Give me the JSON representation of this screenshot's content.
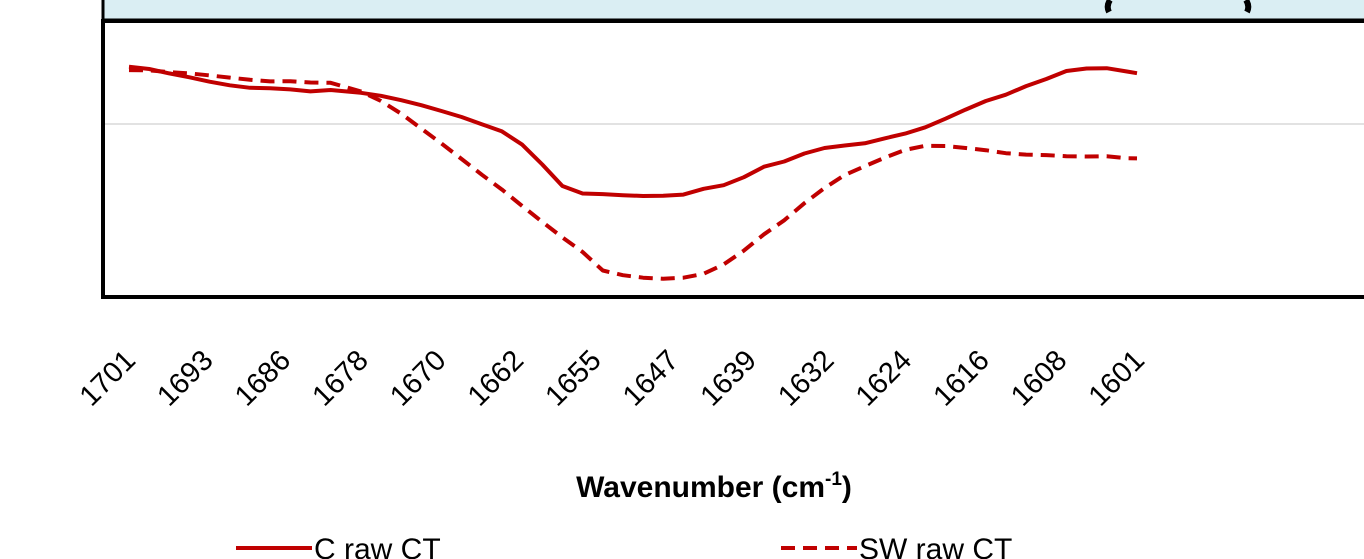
{
  "chart_data": {
    "type": "line",
    "title": "",
    "xlabel": "Wavenumber (cm",
    "xlabel_sup": "-1",
    "xlabel_suffix": ")",
    "ylabel": "",
    "x_reversed": true,
    "categories": [
      "1701",
      "1693",
      "1686",
      "1678",
      "1670",
      "1662",
      "1655",
      "1647",
      "1639",
      "1632",
      "1624",
      "1616",
      "1608",
      "1601"
    ],
    "x": [
      1701,
      1699,
      1697,
      1695,
      1693,
      1691,
      1689,
      1687,
      1685,
      1683,
      1681,
      1678,
      1676,
      1674,
      1672,
      1670,
      1668,
      1666,
      1664,
      1662,
      1660,
      1658,
      1656,
      1654,
      1652,
      1650,
      1648,
      1646,
      1644,
      1642,
      1640,
      1638,
      1636,
      1634,
      1632,
      1630,
      1628,
      1626,
      1624,
      1622,
      1620,
      1618,
      1616,
      1614,
      1612,
      1610,
      1608,
      1606,
      1604,
      1602,
      1601
    ],
    "ylim": [
      0,
      1
    ],
    "grid": true,
    "legend_position": "bottom",
    "series": [
      {
        "name": "C raw CT",
        "style": "solid",
        "color": "#c00000",
        "values": [
          0.834,
          0.826,
          0.81,
          0.796,
          0.78,
          0.767,
          0.758,
          0.756,
          0.752,
          0.745,
          0.75,
          0.74,
          0.729,
          0.713,
          0.695,
          0.674,
          0.652,
          0.626,
          0.6,
          0.552,
          0.48,
          0.402,
          0.375,
          0.373,
          0.369,
          0.366,
          0.367,
          0.371,
          0.392,
          0.405,
          0.434,
          0.472,
          0.491,
          0.52,
          0.54,
          0.549,
          0.557,
          0.575,
          0.592,
          0.615,
          0.646,
          0.679,
          0.71,
          0.733,
          0.764,
          0.79,
          0.819,
          0.828,
          0.829,
          0.817,
          0.811
        ]
      },
      {
        "name": "SW raw CT",
        "style": "dashed",
        "color": "#c00000",
        "values": [
          0.822,
          0.821,
          0.815,
          0.81,
          0.803,
          0.795,
          0.787,
          0.781,
          0.782,
          0.777,
          0.776,
          0.745,
          0.71,
          0.664,
          0.61,
          0.556,
          0.5,
          0.443,
          0.389,
          0.33,
          0.272,
          0.216,
          0.163,
          0.096,
          0.079,
          0.07,
          0.066,
          0.07,
          0.084,
          0.118,
          0.168,
          0.227,
          0.278,
          0.34,
          0.395,
          0.442,
          0.474,
          0.505,
          0.533,
          0.548,
          0.547,
          0.54,
          0.532,
          0.521,
          0.516,
          0.514,
          0.51,
          0.509,
          0.51,
          0.503,
          0.502
        ]
      }
    ]
  }
}
